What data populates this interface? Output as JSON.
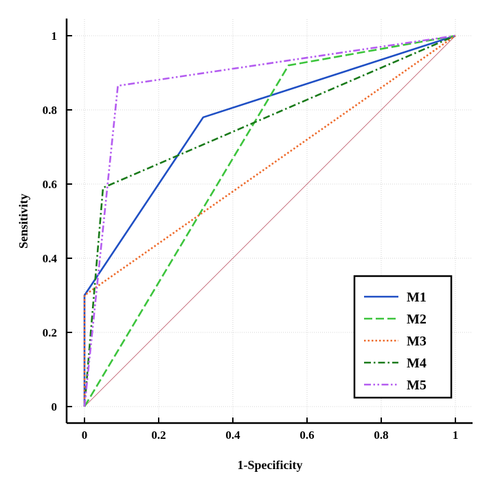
{
  "chart_data": {
    "type": "line",
    "title": "",
    "xlabel": "1-Specificity",
    "ylabel": "Sensitivity",
    "xlim": [
      0,
      1
    ],
    "ylim": [
      0,
      1
    ],
    "grid": true,
    "legend_position": "bottom-right",
    "xticks": [
      0,
      0.2,
      0.4,
      0.6,
      0.8,
      1
    ],
    "yticks": [
      0,
      0.2,
      0.4,
      0.6,
      0.8,
      1
    ],
    "xtick_labels": [
      "0",
      "0.2",
      "0.4",
      "0.6",
      "0.8",
      "1"
    ],
    "ytick_labels": [
      "0",
      "0.2",
      "0.4",
      "0.6",
      "0.8",
      "1"
    ],
    "series": [
      {
        "name": "M1",
        "color": "#1f4fc4",
        "style": "solid",
        "x": [
          0,
          0,
          0.32,
          1
        ],
        "y": [
          0,
          0.3,
          0.78,
          1
        ]
      },
      {
        "name": "M2",
        "color": "#3cc43c",
        "style": "dashed",
        "x": [
          0,
          0.55,
          1
        ],
        "y": [
          0,
          0.92,
          1
        ]
      },
      {
        "name": "M3",
        "color": "#ee6a2a",
        "style": "dotted",
        "x": [
          0,
          0,
          1
        ],
        "y": [
          0,
          0.3,
          1
        ]
      },
      {
        "name": "M4",
        "color": "#1a7a1a",
        "style": "dashdot",
        "x": [
          0,
          0.05,
          1
        ],
        "y": [
          0,
          0.59,
          1
        ]
      },
      {
        "name": "M5",
        "color": "#b45cf0",
        "style": "dashdotdot",
        "x": [
          0,
          0.09,
          1
        ],
        "y": [
          0,
          0.865,
          1
        ]
      }
    ],
    "reference_line": {
      "x": [
        0,
        1
      ],
      "y": [
        0,
        1
      ],
      "color": "#c06070"
    }
  }
}
